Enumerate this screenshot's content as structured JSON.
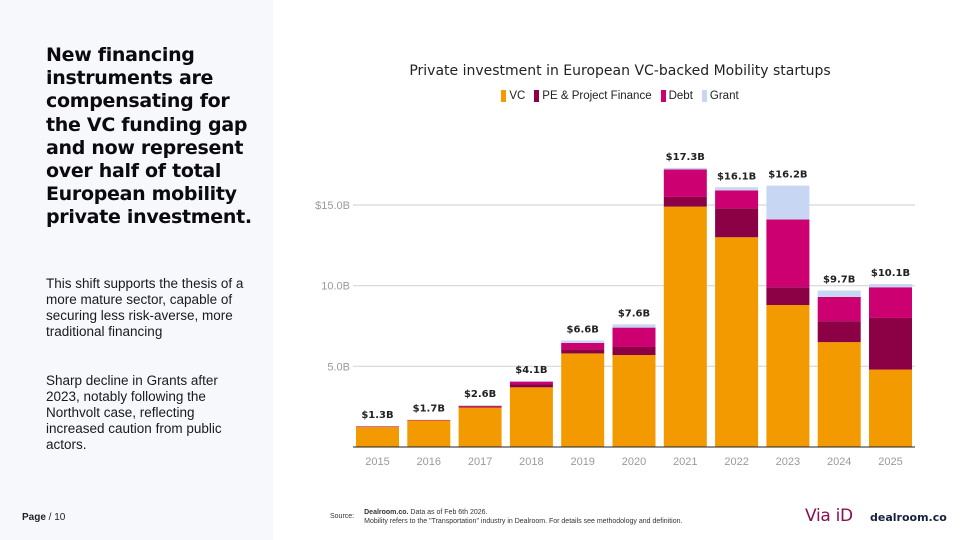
{
  "left": {
    "headline": "New financing instruments are compensating for the VC funding gap and now represent over half of total European mobility private investment.",
    "paragraphs": [
      "This shift supports the thesis of a more mature sector, capable of securing less risk-averse, more traditional financing",
      "Sharp decline in Grants after 2023, notably following the Northvolt case, reflecting increased caution from public actors."
    ],
    "page_bold": "Page",
    "page_rest": " / 10"
  },
  "footer": {
    "source_label": "Source:",
    "source_bold": "Dealroom.co.",
    "source_line1_rest": " Data as of Feb 6th 2026.",
    "source_line2": "Mobility refers to the \"Transportation\" industry in Dealroom. For details see methodology and definition.",
    "logo_via": "Via iD",
    "logo_dealroom": "dealroom.co"
  },
  "chart_data": {
    "type": "bar",
    "stacked": true,
    "title": "Private investment in European VC-backed Mobility startups",
    "xlabel": "",
    "ylabel": "",
    "ylim": [
      0,
      17.5
    ],
    "y_ticks": [
      {
        "value": 5,
        "label": "5.0B"
      },
      {
        "value": 10,
        "label": "10.0B"
      },
      {
        "value": 15,
        "label": "$15.0B"
      }
    ],
    "grid": true,
    "legend_position": "top-center",
    "categories": [
      "2015",
      "2016",
      "2017",
      "2018",
      "2019",
      "2020",
      "2021",
      "2022",
      "2023",
      "2024",
      "2025"
    ],
    "series": [
      {
        "name": "VC",
        "color": "#f29a00",
        "values": [
          1.25,
          1.65,
          2.45,
          3.7,
          5.8,
          5.7,
          14.9,
          13.0,
          8.8,
          6.5,
          4.8
        ]
      },
      {
        "name": "PE & Project Finance",
        "color": "#8c0046",
        "values": [
          0.0,
          0.0,
          0.05,
          0.2,
          0.25,
          0.5,
          0.6,
          1.8,
          1.1,
          1.3,
          3.2
        ]
      },
      {
        "name": "Debt",
        "color": "#cc0070",
        "values": [
          0.02,
          0.02,
          0.05,
          0.15,
          0.4,
          1.2,
          1.7,
          1.1,
          4.2,
          1.5,
          1.9
        ]
      },
      {
        "name": "Grant",
        "color": "#c7d6f3",
        "values": [
          0.03,
          0.03,
          0.05,
          0.05,
          0.15,
          0.2,
          0.1,
          0.2,
          2.1,
          0.4,
          0.2
        ]
      }
    ],
    "totals": [
      1.3,
      1.7,
      2.6,
      4.1,
      6.6,
      7.6,
      17.3,
      16.1,
      16.2,
      9.7,
      10.1
    ],
    "total_labels": [
      "$1.3B",
      "$1.7B",
      "$2.6B",
      "$4.1B",
      "$6.6B",
      "$7.6B",
      "$17.3B",
      "$16.1B",
      "$16.2B",
      "$9.7B",
      "$10.1B"
    ]
  }
}
